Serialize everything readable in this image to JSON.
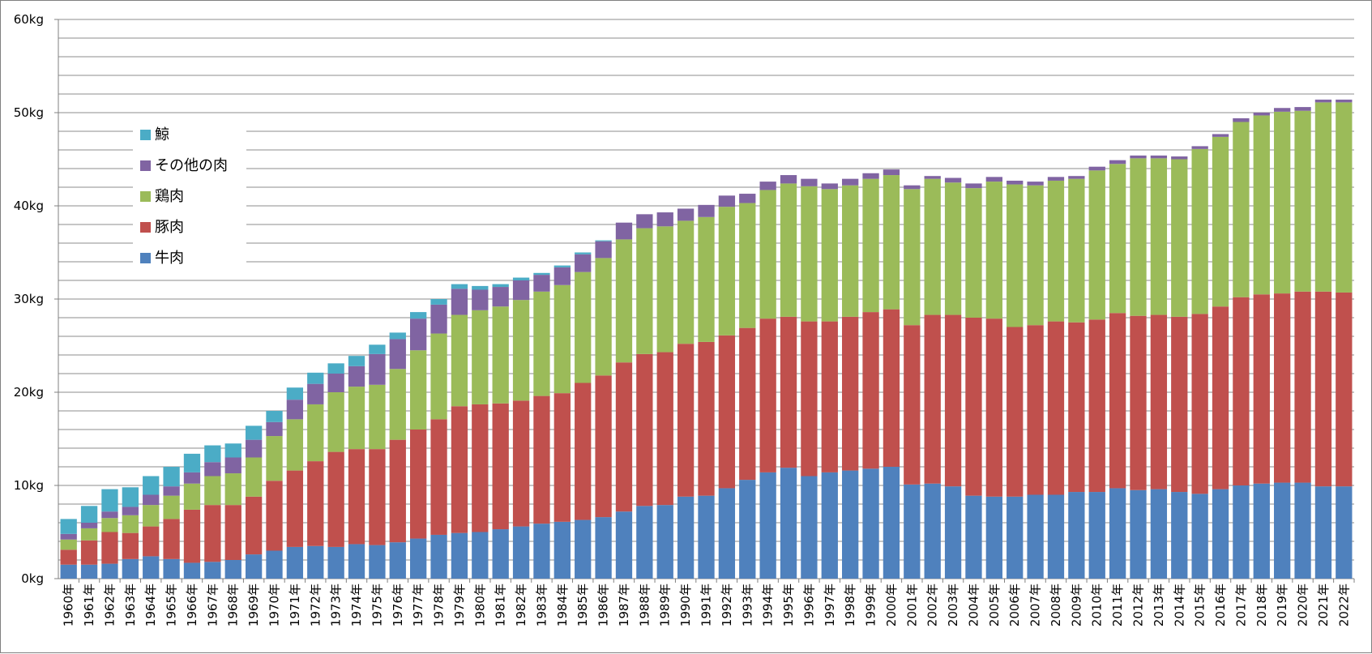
{
  "chart_data": {
    "type": "bar",
    "stacked": true,
    "title": "",
    "xlabel": "",
    "ylabel": "",
    "ylim": [
      0,
      60
    ],
    "y_unit": "kg",
    "y_ticks": [
      "0kg",
      "10kg",
      "20kg",
      "30kg",
      "40kg",
      "50kg",
      "60kg"
    ],
    "grid": "horizontal",
    "legend_placement": "upper-left",
    "categories": [
      "1960年",
      "1961年",
      "1962年",
      "1963年",
      "1964年",
      "1965年",
      "1966年",
      "1967年",
      "1968年",
      "1969年",
      "1970年",
      "1971年",
      "1972年",
      "1973年",
      "1974年",
      "1975年",
      "1976年",
      "1977年",
      "1978年",
      "1979年",
      "1980年",
      "1981年",
      "1982年",
      "1983年",
      "1984年",
      "1985年",
      "1986年",
      "1987年",
      "1988年",
      "1989年",
      "1990年",
      "1991年",
      "1992年",
      "1993年",
      "1994年",
      "1995年",
      "1996年",
      "1997年",
      "1998年",
      "1999年",
      "2000年",
      "2001年",
      "2002年",
      "2003年",
      "2004年",
      "2005年",
      "2006年",
      "2007年",
      "2008年",
      "2009年",
      "2010年",
      "2011年",
      "2012年",
      "2013年",
      "2014年",
      "2015年",
      "2016年",
      "2017年",
      "2018年",
      "2019年",
      "2020年",
      "2021年",
      "2022年"
    ],
    "series": [
      {
        "name": "牛肉",
        "color": "#4f81bd",
        "values": [
          1.5,
          1.5,
          1.6,
          2.1,
          2.4,
          2.1,
          1.7,
          1.8,
          2.0,
          2.6,
          3.0,
          3.4,
          3.5,
          3.4,
          3.7,
          3.6,
          3.9,
          4.3,
          4.7,
          4.9,
          5.0,
          5.3,
          5.6,
          5.9,
          6.1,
          6.3,
          6.6,
          7.2,
          7.8,
          7.9,
          8.8,
          8.9,
          9.7,
          10.6,
          11.4,
          11.9,
          11.0,
          11.4,
          11.6,
          11.8,
          12.0,
          10.1,
          10.2,
          9.9,
          8.9,
          8.8,
          8.8,
          9.0,
          9.0,
          9.3,
          9.3,
          9.7,
          9.5,
          9.6,
          9.3,
          9.1,
          9.6,
          10.0,
          10.2,
          10.3,
          10.3,
          9.9,
          9.9
        ]
      },
      {
        "name": "豚肉",
        "color": "#c0504d",
        "values": [
          1.6,
          2.6,
          3.4,
          2.8,
          3.2,
          4.3,
          5.7,
          6.1,
          5.9,
          6.2,
          7.5,
          8.2,
          9.1,
          10.2,
          10.2,
          10.3,
          11.0,
          11.7,
          12.4,
          13.6,
          13.7,
          13.5,
          13.5,
          13.7,
          13.8,
          14.7,
          15.2,
          16.0,
          16.3,
          16.4,
          16.4,
          16.5,
          16.4,
          16.3,
          16.5,
          16.2,
          16.6,
          16.2,
          16.5,
          16.8,
          16.9,
          17.1,
          18.1,
          18.4,
          19.1,
          19.1,
          18.2,
          18.2,
          18.6,
          18.2,
          18.5,
          18.8,
          18.7,
          18.7,
          18.8,
          19.3,
          19.6,
          20.2,
          20.3,
          20.3,
          20.5,
          20.9,
          20.8
        ]
      },
      {
        "name": "鶏肉",
        "color": "#9bbb59",
        "values": [
          1.1,
          1.3,
          1.5,
          1.9,
          2.3,
          2.5,
          2.8,
          3.1,
          3.4,
          4.2,
          4.8,
          5.5,
          6.1,
          6.4,
          6.7,
          6.9,
          7.6,
          8.5,
          9.2,
          9.8,
          10.1,
          10.4,
          10.8,
          11.2,
          11.6,
          11.9,
          12.6,
          13.2,
          13.5,
          13.5,
          13.2,
          13.4,
          13.8,
          13.4,
          13.8,
          14.3,
          14.5,
          14.2,
          14.1,
          14.3,
          14.4,
          14.6,
          14.6,
          14.2,
          13.9,
          14.7,
          15.3,
          15.0,
          15.1,
          15.4,
          16.0,
          16.0,
          16.9,
          16.8,
          16.9,
          17.7,
          18.2,
          18.8,
          19.2,
          19.5,
          19.4,
          20.3,
          20.4
        ]
      },
      {
        "name": "その他の肉",
        "color": "#8064a2",
        "values": [
          0.6,
          0.6,
          0.7,
          0.9,
          1.1,
          1.0,
          1.2,
          1.5,
          1.7,
          1.9,
          1.5,
          2.1,
          2.2,
          2.0,
          2.2,
          3.3,
          3.2,
          3.4,
          3.1,
          2.8,
          2.2,
          2.1,
          2.1,
          1.8,
          1.9,
          1.9,
          1.8,
          1.8,
          1.5,
          1.5,
          1.3,
          1.3,
          1.2,
          1.0,
          0.9,
          0.9,
          0.8,
          0.6,
          0.7,
          0.6,
          0.6,
          0.4,
          0.3,
          0.5,
          0.5,
          0.5,
          0.4,
          0.4,
          0.4,
          0.3,
          0.4,
          0.4,
          0.3,
          0.3,
          0.3,
          0.3,
          0.3,
          0.4,
          0.3,
          0.4,
          0.4,
          0.3,
          0.3
        ]
      },
      {
        "name": "鯨",
        "color": "#4bacc6",
        "values": [
          1.6,
          1.8,
          2.4,
          2.1,
          2.0,
          2.1,
          2.0,
          1.8,
          1.5,
          1.5,
          1.2,
          1.3,
          1.2,
          1.1,
          1.1,
          1.0,
          0.7,
          0.7,
          0.6,
          0.5,
          0.4,
          0.3,
          0.3,
          0.2,
          0.2,
          0.2,
          0.1,
          0,
          0,
          0,
          0,
          0,
          0,
          0,
          0,
          0,
          0,
          0,
          0,
          0,
          0,
          0,
          0,
          0,
          0,
          0,
          0,
          0,
          0,
          0,
          0,
          0,
          0,
          0,
          0,
          0,
          0,
          0,
          0,
          0,
          0,
          0,
          0
        ]
      }
    ],
    "legend_order": [
      "鯨",
      "その他の肉",
      "鶏肉",
      "豚肉",
      "牛肉"
    ]
  }
}
